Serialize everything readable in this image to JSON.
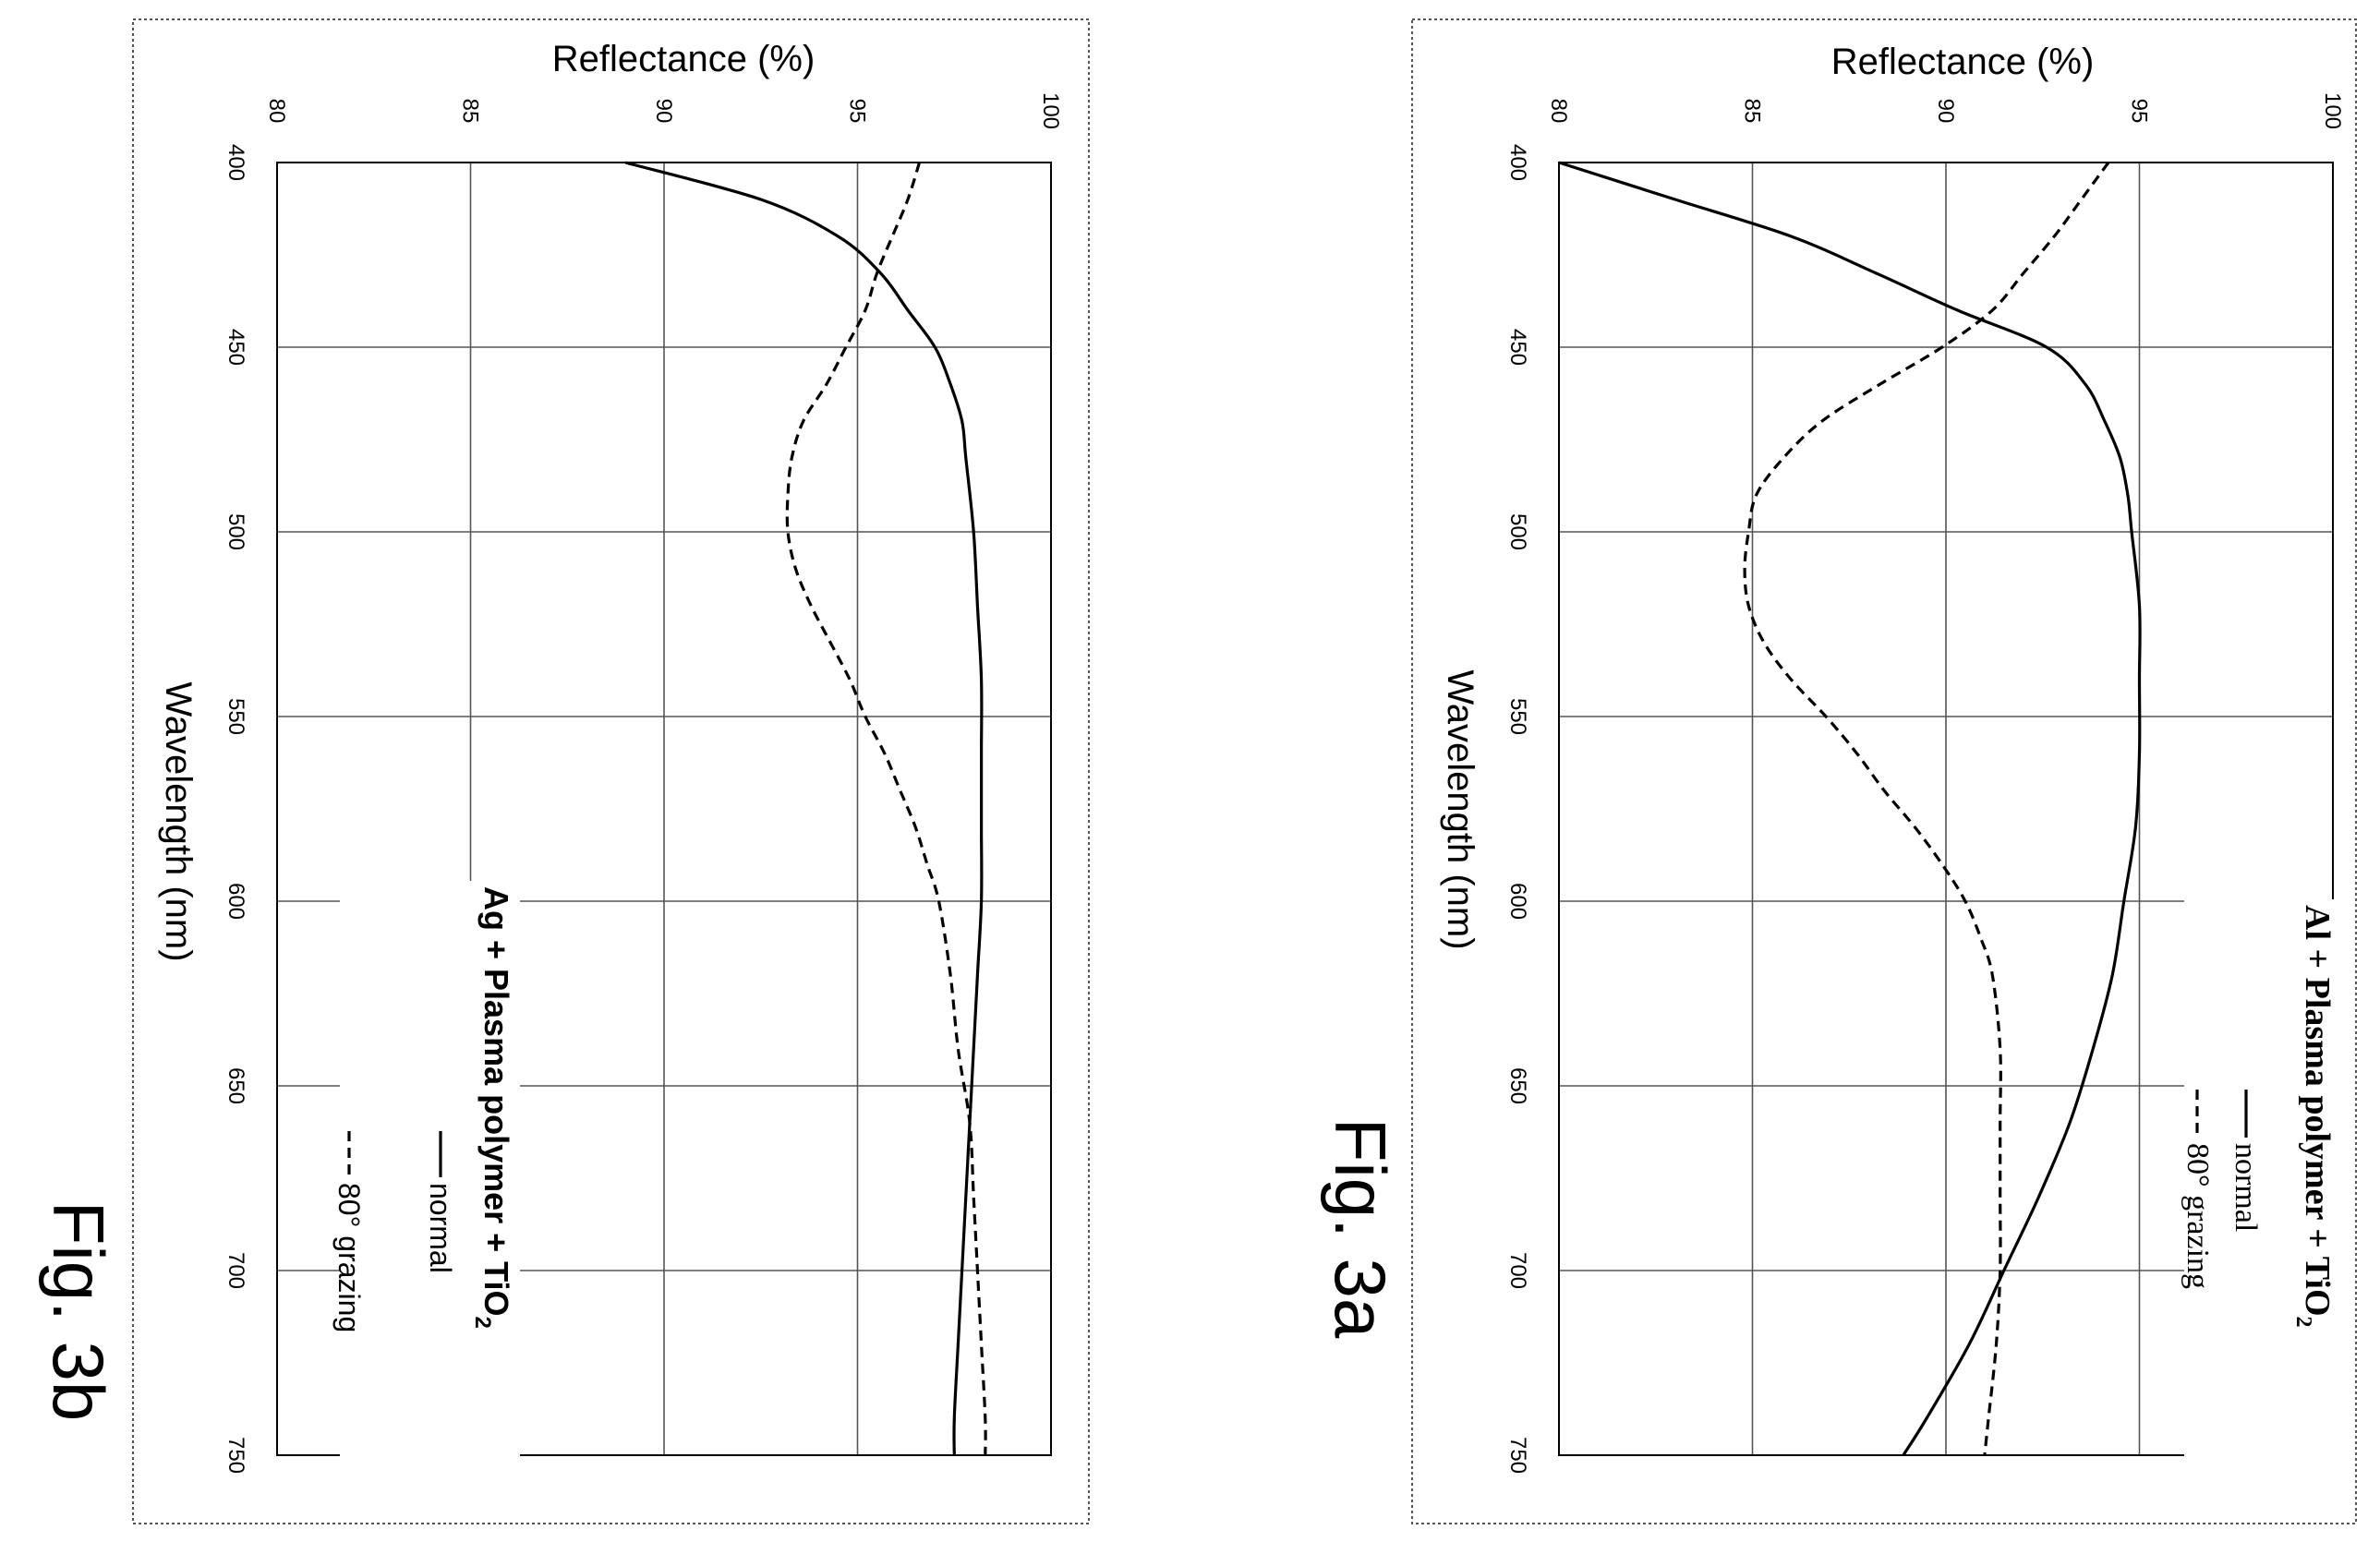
{
  "chart_data": [
    {
      "type": "line",
      "figure_label": "Fig. 3a",
      "title_parts": {
        "main": "Al + Plasma polymer  + TiO",
        "subscript": "2"
      },
      "xlabel": "Wavelength (nm)",
      "ylabel": "Reflectance   (%)",
      "xlim": [
        400,
        750
      ],
      "ylim": [
        80,
        100
      ],
      "xticks": [
        400,
        450,
        500,
        550,
        600,
        650,
        700,
        750
      ],
      "yticks": [
        80,
        85,
        90,
        95,
        100
      ],
      "grid": true,
      "series": [
        {
          "name": "normal",
          "style": "solid",
          "points": [
            [
              400,
              80.0
            ],
            [
              410,
              83.0
            ],
            [
              420,
              86.0
            ],
            [
              430,
              88.2
            ],
            [
              440,
              90.3
            ],
            [
              450,
              92.6
            ],
            [
              460,
              93.6
            ],
            [
              470,
              94.1
            ],
            [
              480,
              94.5
            ],
            [
              490,
              94.7
            ],
            [
              500,
              94.8
            ],
            [
              520,
              95.0
            ],
            [
              540,
              95.0
            ],
            [
              560,
              95.0
            ],
            [
              580,
              94.9
            ],
            [
              600,
              94.6
            ],
            [
              620,
              94.3
            ],
            [
              640,
              93.8
            ],
            [
              660,
              93.2
            ],
            [
              680,
              92.4
            ],
            [
              700,
              91.5
            ],
            [
              720,
              90.6
            ],
            [
              740,
              89.5
            ],
            [
              750,
              88.9
            ]
          ]
        },
        {
          "name": "80° grazing",
          "style": "dashed",
          "points": [
            [
              400,
              94.2
            ],
            [
              410,
              93.5
            ],
            [
              420,
              92.8
            ],
            [
              430,
              92.0
            ],
            [
              440,
              91.2
            ],
            [
              450,
              89.9
            ],
            [
              460,
              88.3
            ],
            [
              470,
              86.8
            ],
            [
              480,
              85.8
            ],
            [
              490,
              85.1
            ],
            [
              500,
              84.9
            ],
            [
              510,
              84.8
            ],
            [
              520,
              84.9
            ],
            [
              530,
              85.3
            ],
            [
              540,
              86.0
            ],
            [
              550,
              86.9
            ],
            [
              560,
              87.7
            ],
            [
              570,
              88.4
            ],
            [
              580,
              89.2
            ],
            [
              590,
              89.9
            ],
            [
              600,
              90.5
            ],
            [
              610,
              90.9
            ],
            [
              620,
              91.2
            ],
            [
              640,
              91.4
            ],
            [
              660,
              91.4
            ],
            [
              680,
              91.4
            ],
            [
              700,
              91.4
            ],
            [
              720,
              91.3
            ],
            [
              740,
              91.1
            ],
            [
              750,
              91.0
            ]
          ]
        }
      ]
    },
    {
      "type": "line",
      "figure_label": "Fig. 3b",
      "title_parts": {
        "main": "Ag + Plasma polymer + TiO",
        "subscript": "2"
      },
      "xlabel": "Wavelength  (nm)",
      "ylabel": "Reflectance   (%)",
      "xlim": [
        400,
        750
      ],
      "ylim": [
        80,
        100
      ],
      "xticks": [
        400,
        450,
        500,
        550,
        600,
        650,
        700,
        750
      ],
      "yticks": [
        80,
        85,
        90,
        95,
        100
      ],
      "grid": true,
      "series": [
        {
          "name": "normal",
          "style": "solid",
          "points": [
            [
              400,
              89.0
            ],
            [
              410,
              92.5
            ],
            [
              420,
              94.5
            ],
            [
              430,
              95.6
            ],
            [
              440,
              96.3
            ],
            [
              450,
              97.0
            ],
            [
              460,
              97.4
            ],
            [
              470,
              97.7
            ],
            [
              480,
              97.8
            ],
            [
              500,
              98.0
            ],
            [
              520,
              98.1
            ],
            [
              540,
              98.2
            ],
            [
              560,
              98.2
            ],
            [
              580,
              98.2
            ],
            [
              600,
              98.2
            ],
            [
              620,
              98.1
            ],
            [
              640,
              98.0
            ],
            [
              660,
              97.9
            ],
            [
              680,
              97.8
            ],
            [
              700,
              97.7
            ],
            [
              720,
              97.6
            ],
            [
              740,
              97.5
            ],
            [
              750,
              97.5
            ]
          ]
        },
        {
          "name": "80° grazing",
          "style": "dashed",
          "points": [
            [
              400,
              96.6
            ],
            [
              410,
              96.3
            ],
            [
              420,
              95.9
            ],
            [
              430,
              95.5
            ],
            [
              440,
              95.2
            ],
            [
              450,
              94.7
            ],
            [
              460,
              94.2
            ],
            [
              470,
              93.6
            ],
            [
              480,
              93.3
            ],
            [
              490,
              93.2
            ],
            [
              500,
              93.2
            ],
            [
              510,
              93.4
            ],
            [
              520,
              93.8
            ],
            [
              530,
              94.3
            ],
            [
              540,
              94.8
            ],
            [
              550,
              95.2
            ],
            [
              560,
              95.7
            ],
            [
              570,
              96.1
            ],
            [
              580,
              96.5
            ],
            [
              590,
              96.8
            ],
            [
              600,
              97.1
            ],
            [
              620,
              97.4
            ],
            [
              640,
              97.6
            ],
            [
              660,
              97.9
            ],
            [
              680,
              98.0
            ],
            [
              700,
              98.1
            ],
            [
              720,
              98.2
            ],
            [
              740,
              98.3
            ],
            [
              750,
              98.3
            ]
          ]
        }
      ]
    }
  ]
}
